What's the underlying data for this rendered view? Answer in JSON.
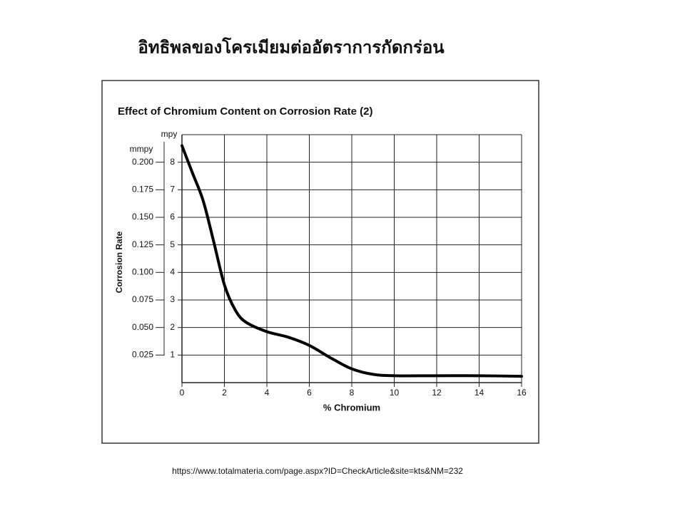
{
  "slide_title": "อิทธิพลของโครเมียมต่ออัตราการกัดกร่อน",
  "source": "https://www.totalmateria.com/page.aspx?ID=CheckArticle&site=kts&NM=232",
  "chart_data": {
    "type": "line",
    "title": "Effect of Chromium Content on Corrosion Rate (2)",
    "x_label": "% Chromium",
    "y_label": "Corrosion Rate",
    "y_unit": "mpy",
    "y2_unit": "mmpy",
    "x": [
      0,
      0.5,
      1,
      1.5,
      2,
      2.5,
      3,
      4,
      5,
      6,
      7,
      8,
      9,
      10,
      12,
      14,
      16
    ],
    "series": [
      {
        "name": "Corrosion Rate",
        "color": "#000000",
        "values": [
          8.6,
          7.6,
          6.6,
          5.1,
          3.55,
          2.65,
          2.2,
          1.85,
          1.65,
          1.35,
          0.9,
          0.5,
          0.3,
          0.25,
          0.25,
          0.25,
          0.23
        ]
      }
    ],
    "xlim": [
      0,
      16
    ],
    "xticks": [
      0,
      2,
      4,
      6,
      8,
      10,
      12,
      14,
      16
    ],
    "ylim": [
      0,
      9
    ],
    "yticks": [
      1,
      2,
      3,
      4,
      5,
      6,
      7,
      8
    ],
    "y2lim": [
      0,
      0.225
    ],
    "y2ticks": [
      0.025,
      {
        "value": 0.05,
        "label": "0.050"
      },
      0.075,
      {
        "value": 0.1,
        "label": "0.100"
      },
      0.125,
      {
        "value": 0.15,
        "label": "0.150"
      },
      0.175,
      {
        "value": 0.2,
        "label": "0.200"
      }
    ],
    "grid": true
  }
}
